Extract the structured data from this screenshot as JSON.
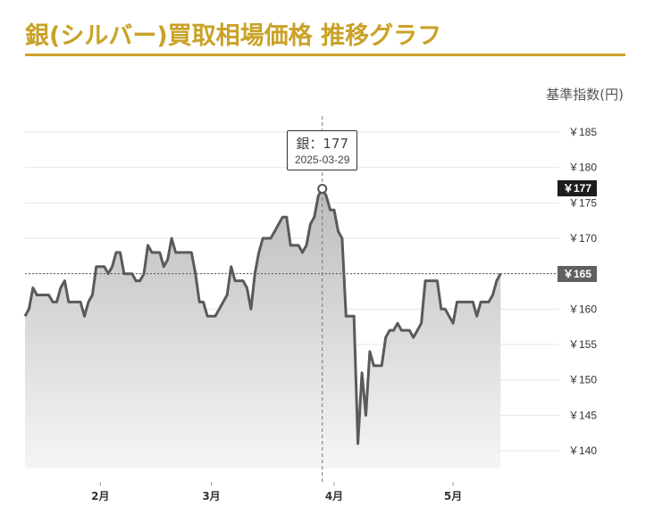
{
  "header": {
    "title": "銀(シルバー)買取相場価格 推移グラフ",
    "accent_color": "#c9a227"
  },
  "unit_label": "基準指数(円)",
  "tooltip": {
    "value": "銀：177",
    "date": "2025-03-29"
  },
  "badges": {
    "hover_value": "￥177",
    "current_value": "￥165"
  },
  "chart_data": {
    "type": "area",
    "x_unit": "date",
    "y_ticks": [
      "￥185",
      "￥180",
      "￥175",
      "￥170",
      "￥165",
      "￥160",
      "￥155",
      "￥150",
      "￥145",
      "￥140"
    ],
    "y_tick_values": [
      185,
      180,
      175,
      170,
      165,
      160,
      155,
      150,
      145,
      140
    ],
    "x_ticks": [
      "2月",
      "3月",
      "4月",
      "5月"
    ],
    "x_tick_dates": [
      "2025-02-01",
      "2025-03-01",
      "2025-04-01",
      "2025-05-01"
    ],
    "ylim": [
      137,
      188
    ],
    "xlim": [
      "2025-01-13",
      "2025-05-26"
    ],
    "grid": true,
    "line_color": "#5a5a5a",
    "series": [
      {
        "points": [
          [
            "2025-01-13",
            159
          ],
          [
            "2025-01-14",
            160
          ],
          [
            "2025-01-15",
            163
          ],
          [
            "2025-01-16",
            162
          ],
          [
            "2025-01-18",
            162
          ],
          [
            "2025-01-19",
            162
          ],
          [
            "2025-01-20",
            161
          ],
          [
            "2025-01-21",
            161
          ],
          [
            "2025-01-22",
            163
          ],
          [
            "2025-01-23",
            164
          ],
          [
            "2025-01-24",
            161
          ],
          [
            "2025-01-26",
            161
          ],
          [
            "2025-01-27",
            161
          ],
          [
            "2025-01-28",
            159
          ],
          [
            "2025-01-29",
            161
          ],
          [
            "2025-01-30",
            162
          ],
          [
            "2025-01-31",
            166
          ],
          [
            "2025-02-02",
            166
          ],
          [
            "2025-02-03",
            165
          ],
          [
            "2025-02-04",
            166
          ],
          [
            "2025-02-05",
            168
          ],
          [
            "2025-02-06",
            168
          ],
          [
            "2025-02-07",
            165
          ],
          [
            "2025-02-09",
            165
          ],
          [
            "2025-02-10",
            164
          ],
          [
            "2025-02-11",
            164
          ],
          [
            "2025-02-12",
            165
          ],
          [
            "2025-02-13",
            169
          ],
          [
            "2025-02-14",
            168
          ],
          [
            "2025-02-16",
            168
          ],
          [
            "2025-02-17",
            166
          ],
          [
            "2025-02-18",
            167
          ],
          [
            "2025-02-19",
            170
          ],
          [
            "2025-02-20",
            168
          ],
          [
            "2025-02-21",
            168
          ],
          [
            "2025-02-24",
            168
          ],
          [
            "2025-02-25",
            165
          ],
          [
            "2025-02-26",
            161
          ],
          [
            "2025-02-27",
            161
          ],
          [
            "2025-02-28",
            159
          ],
          [
            "2025-03-02",
            159
          ],
          [
            "2025-03-03",
            160
          ],
          [
            "2025-03-05",
            162
          ],
          [
            "2025-03-06",
            166
          ],
          [
            "2025-03-07",
            164
          ],
          [
            "2025-03-08",
            164
          ],
          [
            "2025-03-09",
            164
          ],
          [
            "2025-03-10",
            163
          ],
          [
            "2025-03-11",
            160
          ],
          [
            "2025-03-12",
            165
          ],
          [
            "2025-03-13",
            168
          ],
          [
            "2025-03-14",
            170
          ],
          [
            "2025-03-16",
            170
          ],
          [
            "2025-03-17",
            171
          ],
          [
            "2025-03-18",
            172
          ],
          [
            "2025-03-19",
            173
          ],
          [
            "2025-03-20",
            173
          ],
          [
            "2025-03-21",
            169
          ],
          [
            "2025-03-23",
            169
          ],
          [
            "2025-03-24",
            168
          ],
          [
            "2025-03-25",
            169
          ],
          [
            "2025-03-26",
            172
          ],
          [
            "2025-03-27",
            173
          ],
          [
            "2025-03-28",
            176
          ],
          [
            "2025-03-29",
            177
          ],
          [
            "2025-03-30",
            176
          ],
          [
            "2025-03-31",
            174
          ],
          [
            "2025-04-01",
            174
          ],
          [
            "2025-04-02",
            171
          ],
          [
            "2025-04-03",
            170
          ],
          [
            "2025-04-04",
            159
          ],
          [
            "2025-04-06",
            159
          ],
          [
            "2025-04-07",
            141
          ],
          [
            "2025-04-08",
            151
          ],
          [
            "2025-04-09",
            145
          ],
          [
            "2025-04-10",
            154
          ],
          [
            "2025-04-11",
            152
          ],
          [
            "2025-04-13",
            152
          ],
          [
            "2025-04-14",
            156
          ],
          [
            "2025-04-15",
            157
          ],
          [
            "2025-04-16",
            157
          ],
          [
            "2025-04-17",
            158
          ],
          [
            "2025-04-18",
            157
          ],
          [
            "2025-04-20",
            157
          ],
          [
            "2025-04-21",
            156
          ],
          [
            "2025-04-22",
            157
          ],
          [
            "2025-04-23",
            158
          ],
          [
            "2025-04-24",
            164
          ],
          [
            "2025-04-27",
            164
          ],
          [
            "2025-04-28",
            160
          ],
          [
            "2025-04-29",
            160
          ],
          [
            "2025-04-30",
            159
          ],
          [
            "2025-05-01",
            158
          ],
          [
            "2025-05-02",
            161
          ],
          [
            "2025-05-06",
            161
          ],
          [
            "2025-05-07",
            159
          ],
          [
            "2025-05-08",
            161
          ],
          [
            "2025-05-10",
            161
          ],
          [
            "2025-05-11",
            162
          ],
          [
            "2025-05-12",
            164
          ],
          [
            "2025-05-13",
            165
          ]
        ]
      }
    ],
    "highlight": {
      "date": "2025-03-29",
      "value": 177
    },
    "reference_line": {
      "value": 165,
      "style": "dotted"
    }
  }
}
